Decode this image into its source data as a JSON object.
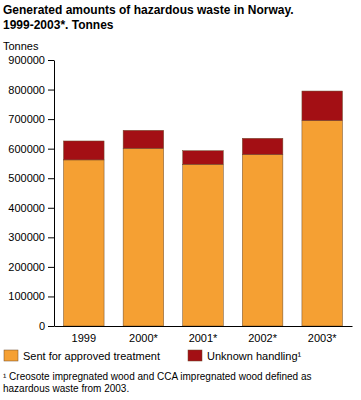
{
  "chart_data": {
    "type": "bar",
    "stacked": true,
    "title": "Generated amounts of hazardous waste in Norway. 1999-2003*. Tonnes",
    "y_label": "Tonnes",
    "categories": [
      "1999",
      "2000*",
      "2001*",
      "2002*",
      "2003*"
    ],
    "series": [
      {
        "name": "Sent for approved treatment",
        "color": "#f5a033",
        "values": [
          562000,
          601000,
          547000,
          580000,
          695000
        ]
      },
      {
        "name": "Unknown handling¹",
        "color": "#a30f14",
        "values": [
          64000,
          61000,
          46000,
          55000,
          100000
        ]
      }
    ],
    "ylim": [
      0,
      900000
    ],
    "yticks": [
      0,
      100000,
      200000,
      300000,
      400000,
      500000,
      600000,
      700000,
      800000,
      900000
    ],
    "grid": false,
    "legend": "bottom",
    "footnote": "¹ Creosote impregnated wood and CCA impregnated wood defined as hazardous waste from 2003."
  }
}
